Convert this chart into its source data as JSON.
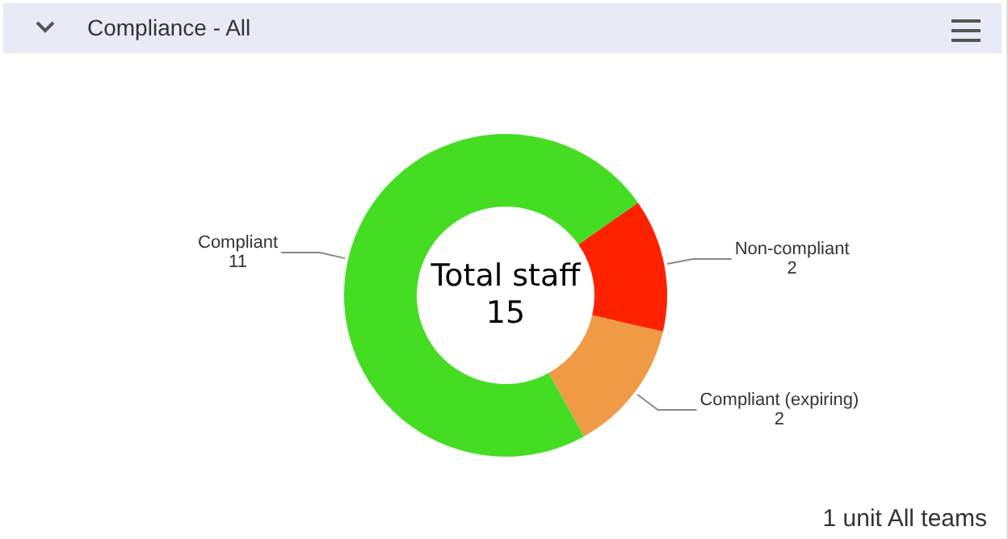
{
  "chart_data": {
    "type": "donut",
    "title": "Compliance - All",
    "categories": [
      "Non-compliant",
      "Compliant (expiring)",
      "Compliant"
    ],
    "values": [
      2,
      2,
      11
    ],
    "colors": [
      "#ff2200",
      "#f09a45",
      "#44dd22"
    ],
    "data_labels": true,
    "legend": false,
    "annotations": [
      "Total staff",
      "15",
      "1 unit All teams"
    ]
  }
}
